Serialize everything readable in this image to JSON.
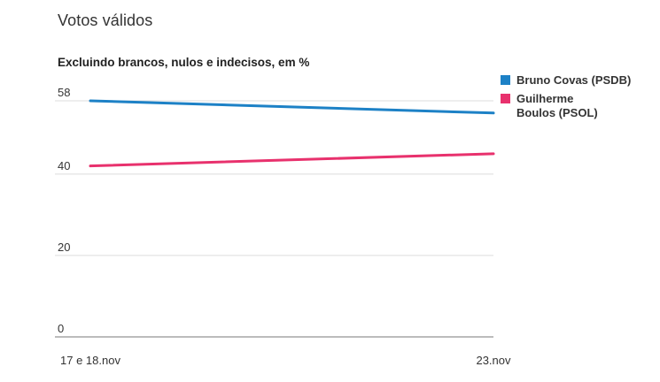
{
  "title": "Votos válidos",
  "subtitle": "Excluindo brancos, nulos e indecisos, em %",
  "colors": {
    "covas_blue": "#1d81c6",
    "boulos_pink": "#e8316d",
    "grid": "#dcdcdc",
    "axis": "#7a7a7a",
    "text": "#333333"
  },
  "chart_data": {
    "type": "line",
    "title": "Votos válidos",
    "subtitle": "Excluindo brancos, nulos e indecisos, em %",
    "x": [
      "17 e 18.nov",
      "23.nov"
    ],
    "series": [
      {
        "name": "Bruno Covas (PSDB)",
        "color": "#1d81c6",
        "values": [
          58,
          55
        ]
      },
      {
        "name": "Guilherme Boulos (PSOL)",
        "color": "#e8316d",
        "values": [
          42,
          45
        ]
      }
    ],
    "yticks": [
      0,
      20,
      40,
      58
    ],
    "ylim": [
      0,
      58
    ],
    "xlabel": "",
    "ylabel": "",
    "grid": true,
    "legend_position": "top-right"
  }
}
